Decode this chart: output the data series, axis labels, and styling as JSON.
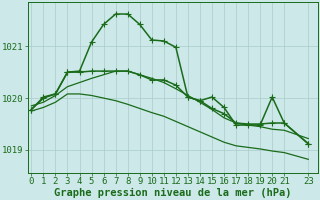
{
  "background_color": "#cce8e8",
  "grid_color": "#aacccc",
  "line_color": "#1a6b1a",
  "title": "Graphe pression niveau de la mer (hPa)",
  "xlabel_ticks": [
    0,
    1,
    2,
    3,
    4,
    5,
    6,
    7,
    8,
    9,
    10,
    11,
    12,
    13,
    14,
    15,
    16,
    17,
    18,
    19,
    20,
    21,
    23
  ],
  "yticks": [
    1019,
    1020,
    1021
  ],
  "ylim": [
    1018.55,
    1021.85
  ],
  "xlim": [
    -0.3,
    23.8
  ],
  "series": [
    {
      "x": [
        0,
        1,
        2,
        3,
        4,
        5,
        6,
        7,
        8,
        9,
        10,
        11,
        12,
        13,
        14,
        15,
        16,
        17,
        18,
        19,
        20,
        21,
        23
      ],
      "y": [
        1019.85,
        1019.92,
        1020.05,
        1020.22,
        1020.3,
        1020.38,
        1020.45,
        1020.52,
        1020.52,
        1020.45,
        1020.38,
        1020.3,
        1020.18,
        1020.05,
        1019.92,
        1019.78,
        1019.62,
        1019.52,
        1019.48,
        1019.45,
        1019.4,
        1019.38,
        1019.22
      ],
      "marker": null,
      "linewidth": 0.9,
      "linestyle": "-"
    },
    {
      "x": [
        0,
        1,
        2,
        3,
        4,
        5,
        6,
        7,
        8,
        9,
        10,
        11,
        12,
        13,
        14,
        15,
        16,
        17,
        18,
        19,
        20,
        21,
        23
      ],
      "y": [
        1019.75,
        1019.82,
        1019.92,
        1020.08,
        1020.08,
        1020.05,
        1020.0,
        1019.95,
        1019.88,
        1019.8,
        1019.72,
        1019.65,
        1019.55,
        1019.45,
        1019.35,
        1019.25,
        1019.15,
        1019.08,
        1019.05,
        1019.02,
        1018.98,
        1018.95,
        1018.82
      ],
      "marker": null,
      "linewidth": 0.9,
      "linestyle": "-"
    },
    {
      "x": [
        0,
        1,
        2,
        3,
        4,
        5,
        6,
        7,
        8,
        9,
        10,
        11,
        12,
        13,
        14,
        15,
        16,
        17,
        18,
        19,
        20,
        21,
        23
      ],
      "y": [
        1019.78,
        1020.0,
        1020.08,
        1020.5,
        1020.52,
        1021.08,
        1021.42,
        1021.62,
        1021.62,
        1021.42,
        1021.12,
        1021.1,
        1020.98,
        1020.02,
        1019.95,
        1020.02,
        1019.82,
        1019.48,
        1019.48,
        1019.48,
        1020.02,
        1019.52,
        1019.12
      ],
      "marker": "+",
      "markersize": 4,
      "linewidth": 1.1,
      "linestyle": "-"
    },
    {
      "x": [
        0,
        1,
        2,
        3,
        4,
        5,
        6,
        7,
        8,
        9,
        10,
        11,
        12,
        13,
        14,
        15,
        16,
        17,
        18,
        19,
        20,
        21,
        23
      ],
      "y": [
        1019.78,
        1020.02,
        1020.08,
        1020.5,
        1020.5,
        1020.52,
        1020.52,
        1020.52,
        1020.52,
        1020.45,
        1020.35,
        1020.35,
        1020.25,
        1020.02,
        1019.95,
        1019.8,
        1019.7,
        1019.52,
        1019.5,
        1019.5,
        1019.52,
        1019.52,
        1019.12
      ],
      "marker": "+",
      "markersize": 4,
      "linewidth": 1.1,
      "linestyle": "-"
    }
  ],
  "title_fontsize": 7.5,
  "tick_fontsize": 6.5,
  "title_color": "#1a6b1a",
  "tick_color": "#1a6b1a"
}
